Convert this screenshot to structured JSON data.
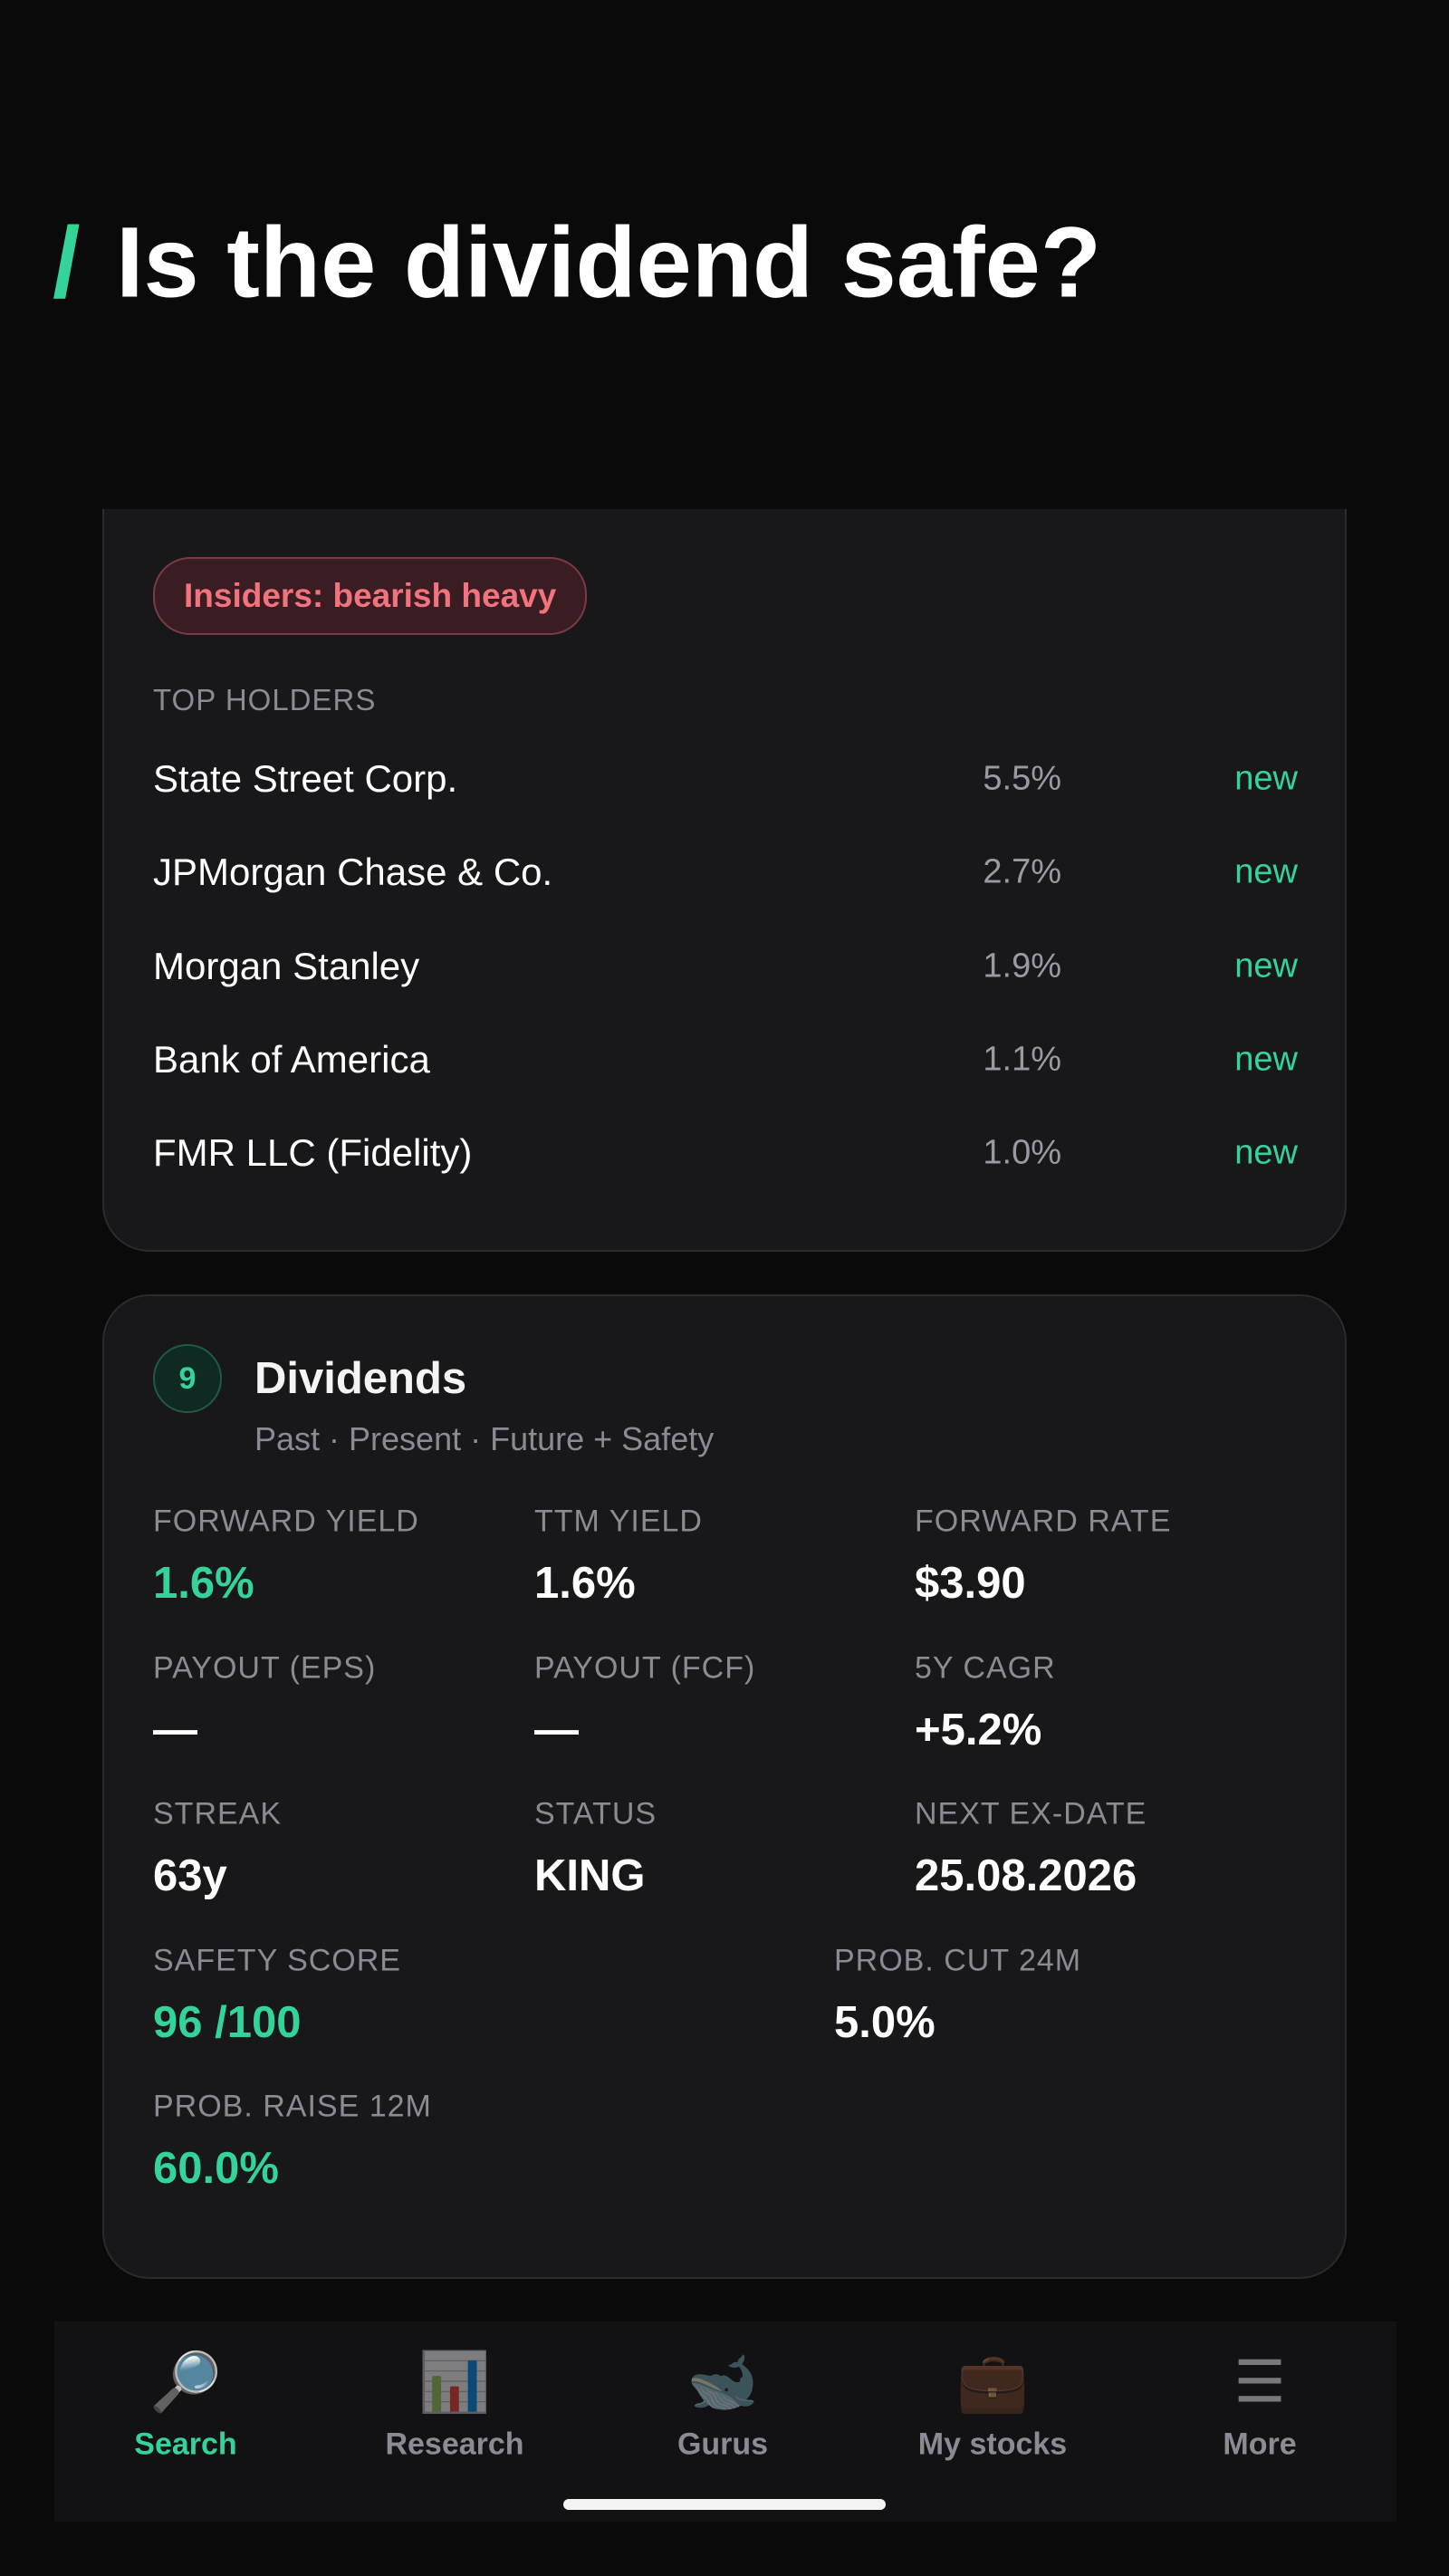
{
  "header": {
    "marker": "/",
    "title": "Is the dividend safe?"
  },
  "holders_card": {
    "badge": "Insiders: bearish heavy",
    "section_label": "TOP HOLDERS",
    "rows": [
      {
        "name": "State Street Corp.",
        "share": "5.5%",
        "status": "new"
      },
      {
        "name": "JPMorgan Chase & Co.",
        "share": "2.7%",
        "status": "new"
      },
      {
        "name": "Morgan Stanley",
        "share": "1.9%",
        "status": "new"
      },
      {
        "name": "Bank of America",
        "share": "1.1%",
        "status": "new"
      },
      {
        "name": "FMR LLC (Fidelity)",
        "share": "1.0%",
        "status": "new"
      }
    ]
  },
  "dividends_card": {
    "number": "9",
    "title": "Dividends",
    "subtitle": "Past · Present · Future + Safety",
    "metrics": [
      {
        "label": "FORWARD YIELD",
        "value": "1.6%",
        "highlight": true
      },
      {
        "label": "TTM YIELD",
        "value": "1.6%",
        "highlight": false
      },
      {
        "label": "FORWARD RATE",
        "value": "$3.90",
        "highlight": false
      },
      {
        "label": "PAYOUT (EPS)",
        "value": "—",
        "highlight": false
      },
      {
        "label": "PAYOUT (FCF)",
        "value": "—",
        "highlight": false
      },
      {
        "label": "5Y CAGR",
        "value": "+5.2%",
        "highlight": false
      },
      {
        "label": "STREAK",
        "value": "63y",
        "highlight": false
      },
      {
        "label": "STATUS",
        "value": "KING",
        "highlight": false
      },
      {
        "label": "NEXT EX-DATE",
        "value": "25.08.2026",
        "highlight": false
      },
      {
        "label": "SAFETY SCORE",
        "value": "96 /100",
        "highlight": true
      },
      {
        "label": "PROB. CUT 24M",
        "value": "5.0%",
        "highlight": false
      },
      {
        "label": "PROB. RAISE 12M",
        "value": "60.0%",
        "highlight": true
      }
    ]
  },
  "nav": {
    "items": [
      {
        "icon": "🔎",
        "label": "Search",
        "active": true
      },
      {
        "icon": "📊",
        "label": "Research",
        "active": false
      },
      {
        "icon": "🐋",
        "label": "Gurus",
        "active": false
      },
      {
        "icon": "💼",
        "label": "My stocks",
        "active": false
      },
      {
        "icon": "☰",
        "label": "More",
        "active": false
      }
    ]
  }
}
